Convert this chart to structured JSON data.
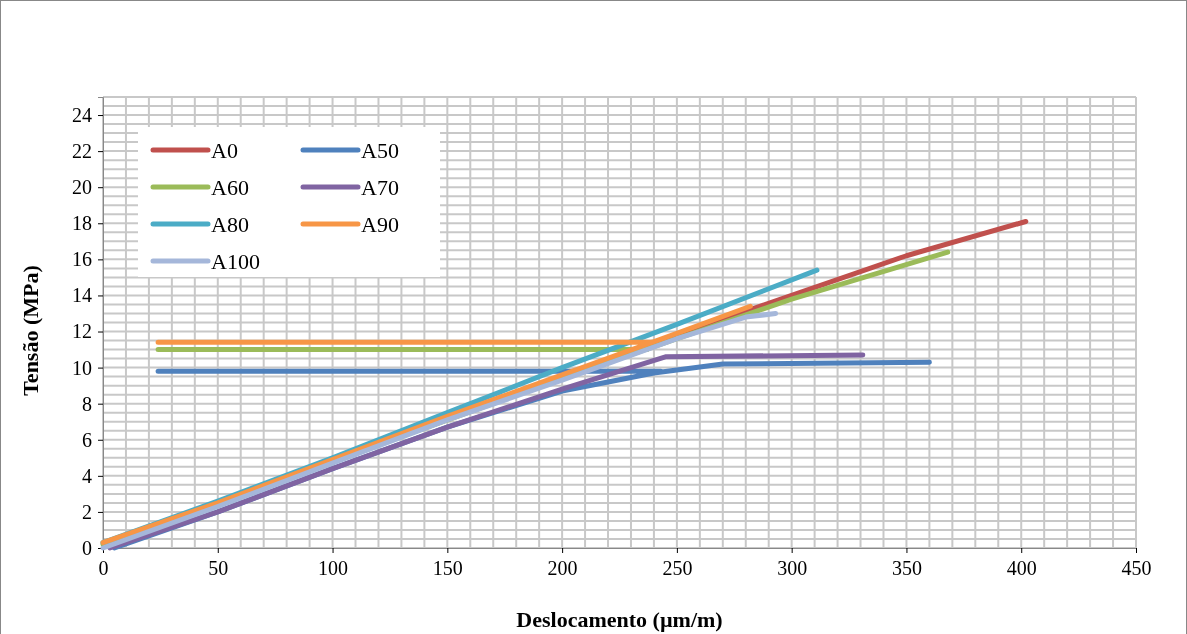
{
  "chart_data": {
    "type": "line",
    "xlabel": "Deslocamento (µm/m)",
    "ylabel": "Tensão (MPa)",
    "xlim": [
      0,
      450
    ],
    "xticks": [
      0,
      50,
      100,
      150,
      200,
      250,
      300,
      350,
      400,
      450
    ],
    "ylim": [
      0,
      25
    ],
    "yticks": [
      0,
      2,
      4,
      6,
      8,
      10,
      12,
      14,
      16,
      18,
      20,
      22,
      24
    ],
    "grid": true,
    "legend": "top left",
    "line_style": "solid",
    "marker": "none",
    "series": [
      {
        "name": "A0",
        "color": "#c0504d",
        "x": [
          100,
          200,
          250,
          300,
          350,
          402
        ],
        "values": [
          4.8,
          9.5,
          11.8,
          14.0,
          16.2,
          18.1
        ]
      },
      {
        "name": "A50",
        "color": "#4f81bd",
        "x": [
          24,
          243,
          null,
          5,
          50,
          100,
          150,
          200,
          240,
          270,
          360
        ],
        "values": [
          9.8,
          9.8,
          null,
          0,
          2.0,
          4.4,
          6.7,
          8.7,
          9.7,
          10.2,
          10.3
        ]
      },
      {
        "name": "A60",
        "color": "#9bbb59",
        "x": [
          24,
          237,
          null,
          0,
          100,
          200,
          250,
          300,
          368
        ],
        "values": [
          11.0,
          11.0,
          null,
          0.2,
          4.8,
          9.4,
          11.6,
          13.8,
          16.4
        ]
      },
      {
        "name": "A70",
        "color": "#8064a2",
        "x": [
          3,
          50,
          100,
          150,
          200,
          245,
          331
        ],
        "values": [
          0,
          2.0,
          4.4,
          6.7,
          8.8,
          10.6,
          10.7
        ]
      },
      {
        "name": "A80",
        "color": "#4bacc6",
        "x": [
          0,
          50,
          100,
          150,
          200,
          250,
          311
        ],
        "values": [
          0.3,
          2.6,
          5.0,
          7.5,
          10.0,
          12.4,
          15.4
        ]
      },
      {
        "name": "A90",
        "color": "#f79646",
        "x": [
          24,
          239,
          null,
          0,
          50,
          100,
          150,
          200,
          250,
          282
        ],
        "values": [
          11.4,
          11.4,
          null,
          0.3,
          2.5,
          4.9,
          7.3,
          9.6,
          11.9,
          13.4
        ]
      },
      {
        "name": "A100",
        "color": "#a5b7da",
        "x": [
          0,
          50,
          100,
          150,
          200,
          250,
          280,
          293
        ],
        "values": [
          0,
          2.3,
          4.7,
          7.1,
          9.3,
          11.6,
          12.8,
          13.0
        ]
      }
    ]
  }
}
